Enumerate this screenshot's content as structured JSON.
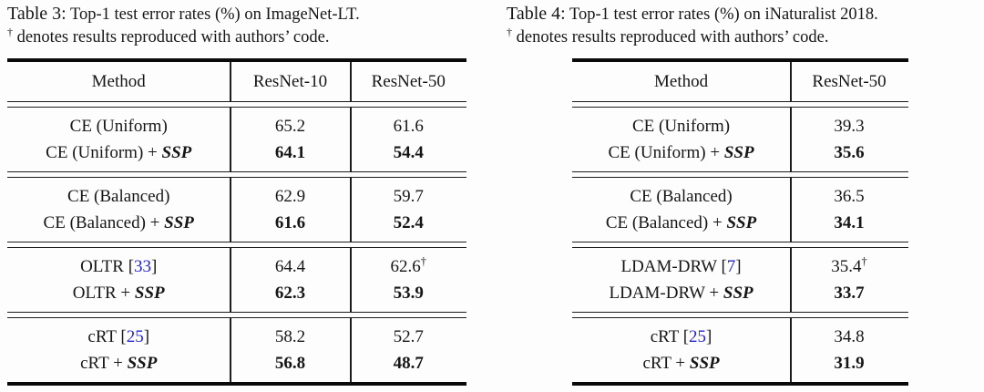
{
  "page": {
    "background_color": "#fdfdfd",
    "text_color": "#161616",
    "rule_color": "#0a0a0a",
    "citation_color": "#2424cd"
  },
  "tables": [
    {
      "caption": {
        "label": "Table 3:",
        "text": "Top-1 test error rates (%) on ImageNet-LT.",
        "note_sup": "†",
        "note": "denotes results reproduced with authors’ code."
      },
      "columns": [
        "Method",
        "ResNet-10",
        "ResNet-50"
      ],
      "sections": [
        {
          "rows": [
            {
              "m1": "CE (Uniform)",
              "cite": "",
              "m2": "",
              "ssp": "",
              "values": [
                {
                  "v": "65.2",
                  "sup": ""
                },
                {
                  "v": "61.6",
                  "sup": ""
                }
              ]
            },
            {
              "m1": "CE (Uniform) + ",
              "cite": "",
              "m2": "",
              "ssp": "SSP",
              "values": [
                {
                  "v": "64.1",
                  "sup": ""
                },
                {
                  "v": "54.4",
                  "sup": ""
                }
              ]
            }
          ]
        },
        {
          "rows": [
            {
              "m1": "CE (Balanced)",
              "cite": "",
              "m2": "",
              "ssp": "",
              "values": [
                {
                  "v": "62.9",
                  "sup": ""
                },
                {
                  "v": "59.7",
                  "sup": ""
                }
              ]
            },
            {
              "m1": "CE (Balanced) + ",
              "cite": "",
              "m2": "",
              "ssp": "SSP",
              "values": [
                {
                  "v": "61.6",
                  "sup": ""
                },
                {
                  "v": "52.4",
                  "sup": ""
                }
              ]
            }
          ]
        },
        {
          "rows": [
            {
              "m1": "OLTR [",
              "cite": "33",
              "m2": "]",
              "ssp": "",
              "values": [
                {
                  "v": "64.4",
                  "sup": ""
                },
                {
                  "v": "62.6",
                  "sup": "†"
                }
              ]
            },
            {
              "m1": "OLTR + ",
              "cite": "",
              "m2": "",
              "ssp": "SSP",
              "values": [
                {
                  "v": "62.3",
                  "sup": ""
                },
                {
                  "v": "53.9",
                  "sup": ""
                }
              ]
            }
          ]
        },
        {
          "rows": [
            {
              "m1": "cRT [",
              "cite": "25",
              "m2": "]",
              "ssp": "",
              "values": [
                {
                  "v": "58.2",
                  "sup": ""
                },
                {
                  "v": "52.7",
                  "sup": ""
                }
              ]
            },
            {
              "m1": "cRT + ",
              "cite": "",
              "m2": "",
              "ssp": "SSP",
              "values": [
                {
                  "v": "56.8",
                  "sup": ""
                },
                {
                  "v": "48.7",
                  "sup": ""
                }
              ]
            }
          ]
        }
      ]
    },
    {
      "caption": {
        "label": "Table 4:",
        "text": "Top-1 test error rates (%) on iNaturalist 2018.",
        "note_sup": "†",
        "note": "denotes results reproduced with authors’ code."
      },
      "columns": [
        "Method",
        "ResNet-50"
      ],
      "sections": [
        {
          "rows": [
            {
              "m1": "CE (Uniform)",
              "cite": "",
              "m2": "",
              "ssp": "",
              "values": [
                {
                  "v": "39.3",
                  "sup": ""
                }
              ]
            },
            {
              "m1": "CE (Uniform) + ",
              "cite": "",
              "m2": "",
              "ssp": "SSP",
              "values": [
                {
                  "v": "35.6",
                  "sup": ""
                }
              ]
            }
          ]
        },
        {
          "rows": [
            {
              "m1": "CE (Balanced)",
              "cite": "",
              "m2": "",
              "ssp": "",
              "values": [
                {
                  "v": "36.5",
                  "sup": ""
                }
              ]
            },
            {
              "m1": "CE (Balanced) + ",
              "cite": "",
              "m2": "",
              "ssp": "SSP",
              "values": [
                {
                  "v": "34.1",
                  "sup": ""
                }
              ]
            }
          ]
        },
        {
          "rows": [
            {
              "m1": "LDAM-DRW [",
              "cite": "7",
              "m2": "]",
              "ssp": "",
              "values": [
                {
                  "v": "35.4",
                  "sup": "†"
                }
              ]
            },
            {
              "m1": "LDAM-DRW + ",
              "cite": "",
              "m2": "",
              "ssp": "SSP",
              "values": [
                {
                  "v": "33.7",
                  "sup": ""
                }
              ]
            }
          ]
        },
        {
          "rows": [
            {
              "m1": "cRT [",
              "cite": "25",
              "m2": "]",
              "ssp": "",
              "values": [
                {
                  "v": "34.8",
                  "sup": ""
                }
              ]
            },
            {
              "m1": "cRT + ",
              "cite": "",
              "m2": "",
              "ssp": "SSP",
              "values": [
                {
                  "v": "31.9",
                  "sup": ""
                }
              ]
            }
          ]
        }
      ]
    }
  ]
}
